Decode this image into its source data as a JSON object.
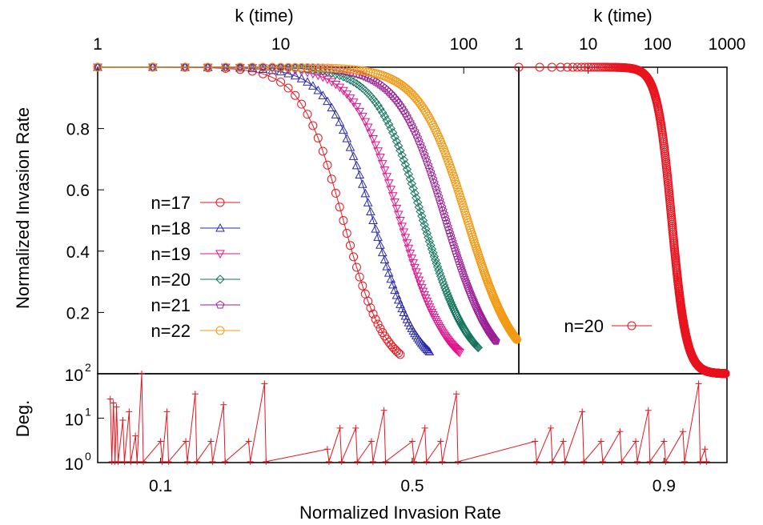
{
  "chart_data": [
    {
      "id": "left-panel",
      "type": "line",
      "xscale": "log",
      "xlim": [
        1,
        200
      ],
      "ylim": [
        0,
        1
      ],
      "xlabel": "k (time)",
      "ylabel": "Normalized Invasion Rate",
      "xticks": [
        "1",
        "10",
        "100"
      ],
      "yticks": [
        "0.2",
        "0.4",
        "0.6",
        "0.8"
      ],
      "ytick_values": [
        0.2,
        0.4,
        0.6,
        0.8
      ],
      "legend_position": "left",
      "series": [
        {
          "name": "n=17",
          "color": "#e8141e",
          "marker": "circle",
          "kmax": 45,
          "kmid": 22,
          "k_s": 5.5
        },
        {
          "name": "n=18",
          "color": "#2a2aa8",
          "marker": "triangle-up",
          "kmax": 65,
          "kmid": 32,
          "k_s": 7.5
        },
        {
          "name": "n=19",
          "color": "#e0148c",
          "marker": "triangle-down",
          "kmax": 95,
          "kmid": 45,
          "k_s": 10
        },
        {
          "name": "n=20",
          "color": "#11735a",
          "marker": "diamond",
          "kmax": 120,
          "kmid": 60,
          "k_s": 13
        },
        {
          "name": "n=21",
          "color": "#9a1e96",
          "marker": "pentagon",
          "kmax": 150,
          "kmid": 80,
          "k_s": 17
        },
        {
          "name": "n=22",
          "color": "#f29a14",
          "marker": "circle",
          "kmax": 195,
          "kmid": 105,
          "k_s": 22
        }
      ]
    },
    {
      "id": "right-panel",
      "type": "line",
      "xscale": "log",
      "xlim": [
        1,
        1000
      ],
      "ylim": [
        0,
        1
      ],
      "xlabel": "k (time)",
      "xticks": [
        "1",
        "10",
        "100",
        "1000"
      ],
      "legend_position": "right",
      "series": [
        {
          "name": "n=20",
          "color": "#e8141e",
          "marker": "circle",
          "kmax": 950,
          "kmid": 160,
          "k_s": 45
        }
      ]
    },
    {
      "id": "bottom-panel",
      "type": "line",
      "yscale": "log",
      "ylabel": "Deg.",
      "xlabel": "Normalized Invasion Rate",
      "xlim": [
        0,
        1
      ],
      "ylim": [
        1,
        100
      ],
      "xticks": [
        "0.1",
        "0.5",
        "0.9"
      ],
      "xtick_values": [
        0.1,
        0.5,
        0.9
      ],
      "yticks": [
        "10",
        "10",
        "10"
      ],
      "ytick_exponents": [
        "0",
        "1",
        "2"
      ],
      "ytick_values": [
        1,
        10,
        100
      ],
      "color": "#e8141e",
      "marker": "plus",
      "spikes": [
        {
          "x": 0.02,
          "y": 27
        },
        {
          "x": 0.025,
          "y": 22
        },
        {
          "x": 0.03,
          "y": 18
        },
        {
          "x": 0.04,
          "y": 9
        },
        {
          "x": 0.05,
          "y": 14
        },
        {
          "x": 0.06,
          "y": 4
        },
        {
          "x": 0.07,
          "y": 100
        },
        {
          "x": 0.1,
          "y": 3
        },
        {
          "x": 0.11,
          "y": 14
        },
        {
          "x": 0.14,
          "y": 3
        },
        {
          "x": 0.155,
          "y": 35
        },
        {
          "x": 0.18,
          "y": 3
        },
        {
          "x": 0.2,
          "y": 20
        },
        {
          "x": 0.24,
          "y": 3
        },
        {
          "x": 0.265,
          "y": 60
        },
        {
          "x": 0.365,
          "y": 2
        },
        {
          "x": 0.385,
          "y": 6
        },
        {
          "x": 0.41,
          "y": 6
        },
        {
          "x": 0.435,
          "y": 3
        },
        {
          "x": 0.455,
          "y": 15
        },
        {
          "x": 0.5,
          "y": 3
        },
        {
          "x": 0.52,
          "y": 6
        },
        {
          "x": 0.545,
          "y": 3
        },
        {
          "x": 0.57,
          "y": 35
        },
        {
          "x": 0.695,
          "y": 3
        },
        {
          "x": 0.72,
          "y": 6
        },
        {
          "x": 0.74,
          "y": 3
        },
        {
          "x": 0.77,
          "y": 14
        },
        {
          "x": 0.8,
          "y": 3
        },
        {
          "x": 0.83,
          "y": 5
        },
        {
          "x": 0.855,
          "y": 3
        },
        {
          "x": 0.875,
          "y": 15
        },
        {
          "x": 0.9,
          "y": 3
        },
        {
          "x": 0.93,
          "y": 5
        },
        {
          "x": 0.955,
          "y": 60
        },
        {
          "x": 0.965,
          "y": 2
        }
      ]
    }
  ]
}
